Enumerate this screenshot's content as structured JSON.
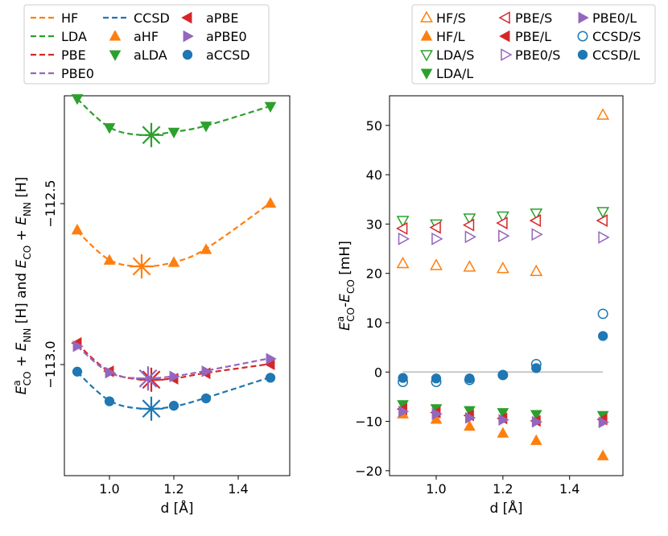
{
  "figure": {
    "colors": {
      "HF": "#ff7f0e",
      "LDA": "#2ca02c",
      "PBE": "#d62728",
      "PBE0": "#9467bd",
      "CCSD": "#1f77b4",
      "zero_line": "#c8c8c8"
    }
  },
  "chart_data": [
    {
      "type": "line",
      "panel": "left",
      "xlabel": "d [Å]",
      "ylabel": "E^a_CO + E_NN [H] and E_CO + E_NN [H]",
      "ylabel_parts": {
        "e_co_a": "E",
        "sup_a": "a",
        "sub_co": "CO",
        "plus": " + ",
        "e_nn": "E",
        "sub_nn": "NN",
        "unit_and": " [H] and ",
        "unit": " [H]"
      },
      "xlim": [
        0.86,
        1.56
      ],
      "ylim": [
        -113.345,
        -112.165
      ],
      "xticks": [
        1.0,
        1.2,
        1.4
      ],
      "xtick_labels": [
        "1.0",
        "1.2",
        "1.4"
      ],
      "yticks": [
        -112.5,
        -113.0
      ],
      "ytick_labels": [
        "−112.5",
        "−113.0"
      ],
      "legend": {
        "position": "above",
        "labels": [
          "HF",
          "LDA",
          "PBE",
          "PBE0",
          "CCSD",
          "aHF",
          "aLDA",
          "aPBE",
          "aPBE0",
          "aCCSD"
        ]
      },
      "lines": [
        {
          "name": "HF",
          "color_key": "HF",
          "x": [
            0.9,
            1.0,
            1.1,
            1.2,
            1.3,
            1.5
          ],
          "y": [
            -112.586,
            -112.675,
            -112.695,
            -112.682,
            -112.64,
            -112.498
          ]
        },
        {
          "name": "LDA",
          "color_key": "LDA",
          "x": [
            0.9,
            1.0,
            1.1,
            1.2,
            1.3,
            1.5
          ],
          "y": [
            -112.175,
            -112.263,
            -112.287,
            -112.277,
            -112.258,
            -112.197
          ]
        },
        {
          "name": "PBE",
          "color_key": "PBE",
          "x": [
            0.9,
            1.0,
            1.1,
            1.2,
            1.3,
            1.5
          ],
          "y": [
            -112.936,
            -113.022,
            -113.047,
            -113.043,
            -113.026,
            -112.998
          ]
        },
        {
          "name": "PBE0",
          "color_key": "PBE0",
          "x": [
            0.9,
            1.0,
            1.1,
            1.2,
            1.3,
            1.5
          ],
          "y": [
            -112.943,
            -113.025,
            -113.043,
            -113.036,
            -113.019,
            -112.98
          ]
        },
        {
          "name": "CCSD",
          "color_key": "CCSD",
          "x": [
            0.9,
            1.0,
            1.1,
            1.2,
            1.3,
            1.5
          ],
          "y": [
            -113.024,
            -113.112,
            -113.137,
            -113.13,
            -113.103,
            -113.039
          ]
        }
      ],
      "markers": [
        {
          "name": "aHF",
          "color_key": "HF",
          "marker": "triangle-up",
          "filled": true,
          "x": [
            0.9,
            1.0,
            1.2,
            1.3,
            1.5
          ],
          "y": [
            -112.582,
            -112.676,
            -112.683,
            -112.643,
            -112.499
          ]
        },
        {
          "name": "aLDA",
          "color_key": "LDA",
          "marker": "triangle-down",
          "filled": true,
          "x": [
            0.9,
            1.0,
            1.2,
            1.3,
            1.5
          ],
          "y": [
            -112.174,
            -112.264,
            -112.278,
            -112.259,
            -112.198
          ]
        },
        {
          "name": "aPBE",
          "color_key": "PBE",
          "marker": "triangle-left",
          "filled": true,
          "x": [
            0.9,
            1.0,
            1.2,
            1.3,
            1.5
          ],
          "y": [
            -112.933,
            -113.021,
            -113.044,
            -113.027,
            -112.999
          ]
        },
        {
          "name": "aPBE0",
          "color_key": "PBE0",
          "marker": "triangle-right",
          "filled": true,
          "x": [
            0.9,
            1.0,
            1.2,
            1.3,
            1.5
          ],
          "y": [
            -112.943,
            -113.025,
            -113.037,
            -113.021,
            -112.982
          ]
        },
        {
          "name": "aCCSD",
          "color_key": "CCSD",
          "marker": "circle",
          "filled": true,
          "x": [
            0.9,
            1.0,
            1.2,
            1.3,
            1.5
          ],
          "y": [
            -113.022,
            -113.114,
            -113.128,
            -113.105,
            -113.041
          ]
        }
      ],
      "minima": [
        {
          "name": "HF",
          "color_key": "HF",
          "x": 1.1,
          "y": -112.695
        },
        {
          "name": "LDA",
          "color_key": "LDA",
          "x": 1.13,
          "y": -112.287
        },
        {
          "name": "PBE",
          "color_key": "PBE",
          "x": 1.13,
          "y": -113.047
        },
        {
          "name": "PBE0",
          "color_key": "PBE0",
          "x": 1.12,
          "y": -113.043
        },
        {
          "name": "CCSD",
          "color_key": "CCSD",
          "x": 1.13,
          "y": -113.137
        }
      ]
    },
    {
      "type": "scatter",
      "panel": "right",
      "xlabel": "d [Å]",
      "ylabel": "E^a_CO - E_CO [mH]",
      "ylabel_parts": {
        "e1": "E",
        "sup_a": "a",
        "sub1": "CO",
        "dash": "-",
        "e2": "E",
        "sub2": "CO",
        "unit": " [mH]"
      },
      "xlim": [
        0.86,
        1.56
      ],
      "ylim": [
        -21.0,
        56.0
      ],
      "xticks": [
        1.0,
        1.2,
        1.4
      ],
      "xtick_labels": [
        "1.0",
        "1.2",
        "1.4"
      ],
      "yticks": [
        -20,
        -10,
        0,
        10,
        20,
        30,
        40,
        50
      ],
      "ytick_labels": [
        "−20",
        "−10",
        "0",
        "10",
        "20",
        "30",
        "40",
        "50"
      ],
      "zero_line": {
        "x": [
          0.9,
          1.5
        ],
        "y": 0
      },
      "legend": {
        "position": "above",
        "labels": [
          "HF/S",
          "HF/L",
          "LDA/S",
          "LDA/L",
          "PBE/S",
          "PBE/L",
          "PBE0/S",
          "PBE0/L",
          "CCSD/S",
          "CCSD/L"
        ]
      },
      "series": [
        {
          "name": "HF/S",
          "color_key": "HF",
          "marker": "triangle-up",
          "filled": false,
          "x": [
            0.9,
            1.0,
            1.1,
            1.2,
            1.3,
            1.5
          ],
          "y": [
            22.0,
            21.6,
            21.3,
            21.0,
            20.4,
            52.1
          ]
        },
        {
          "name": "HF/L",
          "color_key": "HF",
          "marker": "triangle-up",
          "filled": true,
          "x": [
            0.9,
            1.0,
            1.1,
            1.2,
            1.3,
            1.5
          ],
          "y": [
            -8.5,
            -9.6,
            -11.0,
            -12.4,
            -13.9,
            -17.0
          ]
        },
        {
          "name": "LDA/S",
          "color_key": "LDA",
          "marker": "triangle-down",
          "filled": false,
          "x": [
            0.9,
            1.0,
            1.1,
            1.2,
            1.3,
            1.5
          ],
          "y": [
            30.7,
            30.0,
            31.2,
            31.6,
            32.2,
            32.5
          ]
        },
        {
          "name": "LDA/L",
          "color_key": "LDA",
          "marker": "triangle-down",
          "filled": true,
          "x": [
            0.9,
            1.0,
            1.1,
            1.2,
            1.3,
            1.5
          ],
          "y": [
            -6.6,
            -7.4,
            -7.8,
            -8.2,
            -8.6,
            -8.8
          ]
        },
        {
          "name": "PBE/S",
          "color_key": "PBE",
          "marker": "triangle-left",
          "filled": false,
          "x": [
            0.9,
            1.0,
            1.1,
            1.2,
            1.3,
            1.5
          ],
          "y": [
            29.1,
            29.3,
            29.8,
            30.2,
            30.7,
            30.7
          ]
        },
        {
          "name": "PBE/L",
          "color_key": "PBE",
          "marker": "triangle-left",
          "filled": true,
          "x": [
            0.9,
            1.0,
            1.1,
            1.2,
            1.3,
            1.5
          ],
          "y": [
            -7.5,
            -8.2,
            -8.8,
            -9.4,
            -9.9,
            -9.6
          ]
        },
        {
          "name": "PBE0/S",
          "color_key": "PBE0",
          "marker": "triangle-right",
          "filled": false,
          "x": [
            0.9,
            1.0,
            1.1,
            1.2,
            1.3,
            1.5
          ],
          "y": [
            27.0,
            27.0,
            27.4,
            27.6,
            27.9,
            27.3
          ]
        },
        {
          "name": "PBE0/L",
          "color_key": "PBE0",
          "marker": "triangle-right",
          "filled": true,
          "x": [
            0.9,
            1.0,
            1.1,
            1.2,
            1.3,
            1.5
          ],
          "y": [
            -8.0,
            -8.5,
            -9.3,
            -9.7,
            -10.1,
            -10.2
          ]
        },
        {
          "name": "CCSD/S",
          "color_key": "CCSD",
          "marker": "circle",
          "filled": false,
          "x": [
            0.9,
            1.0,
            1.1,
            1.2,
            1.3,
            1.5
          ],
          "y": [
            -2.0,
            -2.0,
            -1.6,
            -0.6,
            1.6,
            11.8
          ]
        },
        {
          "name": "CCSD/L",
          "color_key": "CCSD",
          "marker": "circle",
          "filled": true,
          "x": [
            0.9,
            1.0,
            1.1,
            1.2,
            1.3,
            1.5
          ],
          "y": [
            -1.2,
            -1.3,
            -1.3,
            -0.6,
            0.8,
            7.3
          ]
        }
      ]
    }
  ]
}
